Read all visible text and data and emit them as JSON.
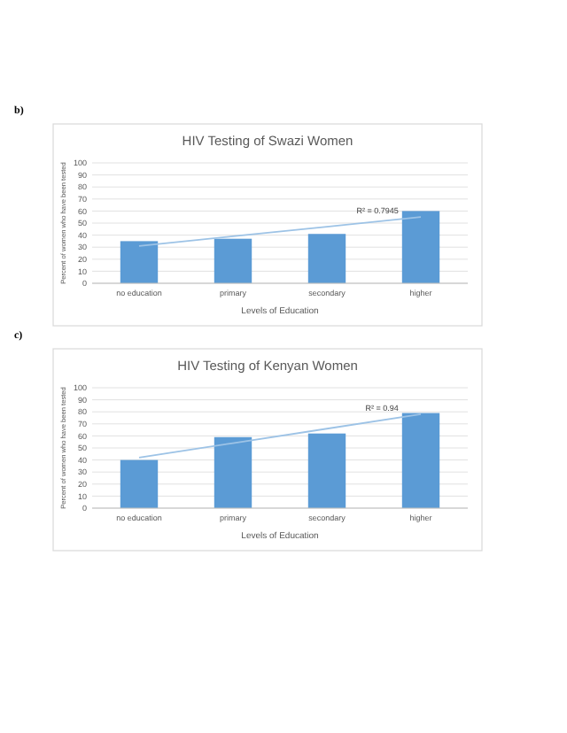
{
  "chart_data": [
    {
      "type": "bar",
      "title": "HIV Testing of Swazi Women",
      "xlabel": "Levels of Education",
      "ylabel": "Percent of women who have been tested",
      "categories": [
        "no education",
        "primary",
        "secondary",
        "higher"
      ],
      "series": [
        {
          "color": "#5b9bd5",
          "values": [
            35,
            37,
            41,
            60
          ]
        },
        {
          "type": "line",
          "color": "#9dc3e6",
          "values": [
            31,
            39,
            47,
            55
          ]
        }
      ],
      "ylim": [
        0,
        100
      ],
      "yticks": [
        0,
        10,
        20,
        30,
        40,
        50,
        60,
        70,
        80,
        90,
        100
      ],
      "grid": "y",
      "annotations": [
        "b)",
        {
          "text": "R² = 0.7945",
          "x": "higher",
          "y": 55
        }
      ]
    },
    {
      "type": "bar",
      "title": "HIV Testing of Kenyan Women",
      "xlabel": "Levels of Education",
      "ylabel": "Percent of women who have been tested",
      "categories": [
        "no education",
        "primary",
        "secondary",
        "higher"
      ],
      "series": [
        {
          "color": "#5b9bd5",
          "values": [
            40,
            59,
            62,
            79
          ]
        },
        {
          "type": "line",
          "color": "#9dc3e6",
          "values": [
            42,
            54,
            66,
            78
          ]
        }
      ],
      "ylim": [
        0,
        100
      ],
      "yticks": [
        0,
        10,
        20,
        30,
        40,
        50,
        60,
        70,
        80,
        90,
        100
      ],
      "grid": "y",
      "annotations": [
        "c)",
        {
          "text": "R² = 0.94",
          "x": "higher",
          "y": 78
        }
      ]
    }
  ]
}
